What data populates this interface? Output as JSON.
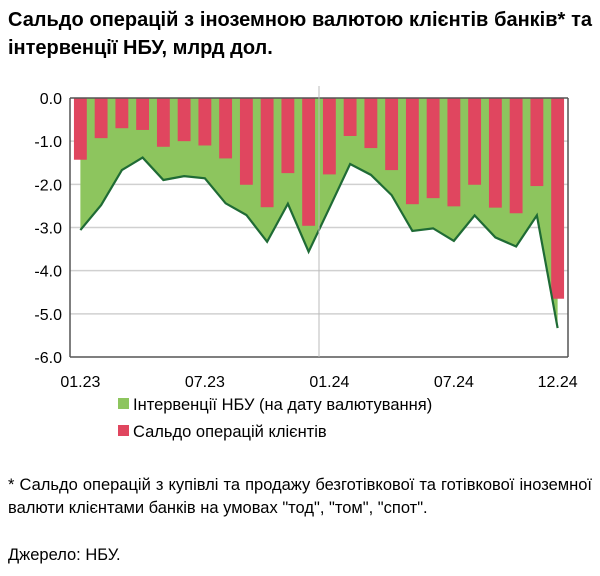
{
  "title": "Сальдо операцій з іноземною валютою клієнтів банків* та інтервенції НБУ, млрд дол.",
  "footnote": "* Сальдо операцій з купівлі та продажу безготівкової та готівкової іноземної валюти клієнтами банків на умовах \"тод\", \"том\", \"спот\".",
  "source": "Джерело: НБУ.",
  "chart_data": {
    "type": "bar+area",
    "title": "Сальдо операцій з іноземною валютою клієнтів банків* та інтервенції НБУ, млрд дол.",
    "categories": [
      "01.23",
      "02.23",
      "03.23",
      "04.23",
      "05.23",
      "06.23",
      "07.23",
      "08.23",
      "09.23",
      "10.23",
      "11.23",
      "12.23",
      "01.24",
      "02.24",
      "03.24",
      "04.24",
      "05.24",
      "06.24",
      "07.24",
      "08.24",
      "09.24",
      "10.24",
      "11.24",
      "12.24"
    ],
    "x_tick_labels": [
      "01.23",
      "07.23",
      "01.24",
      "07.24",
      "12.24"
    ],
    "x_tick_indices": [
      0,
      6,
      12,
      18,
      23
    ],
    "ylim": [
      -6,
      0
    ],
    "y_ticks": [
      0,
      -1,
      -2,
      -3,
      -4,
      -5,
      -6
    ],
    "y_tick_labels": [
      "0.0",
      "-1.0",
      "-2.0",
      "-3.0",
      "-4.0",
      "-5.0",
      "-6.0"
    ],
    "grid": true,
    "legend_position": "bottom",
    "series": [
      {
        "name": "Інтервенції НБУ (на дату валютування)",
        "type": "area",
        "color": "#8dc55e",
        "line_color": "#1f6b35",
        "values": [
          -3.06,
          -2.48,
          -1.67,
          -1.38,
          -1.9,
          -1.81,
          -1.86,
          -2.44,
          -2.71,
          -3.33,
          -2.45,
          -3.56,
          -2.55,
          -1.53,
          -1.78,
          -2.25,
          -3.08,
          -3.02,
          -3.31,
          -2.72,
          -3.23,
          -3.44,
          -2.72,
          -5.33
        ]
      },
      {
        "name": "Сальдо операцій клієнтів",
        "type": "bar",
        "color": "#e0465f",
        "values": [
          -1.43,
          -0.93,
          -0.7,
          -0.74,
          -1.13,
          -1.0,
          -1.1,
          -1.4,
          -2.01,
          -2.53,
          -1.74,
          -2.96,
          -1.77,
          -0.88,
          -1.16,
          -1.67,
          -2.46,
          -2.32,
          -2.51,
          -2.01,
          -2.54,
          -2.67,
          -2.04,
          -4.65
        ]
      }
    ]
  }
}
